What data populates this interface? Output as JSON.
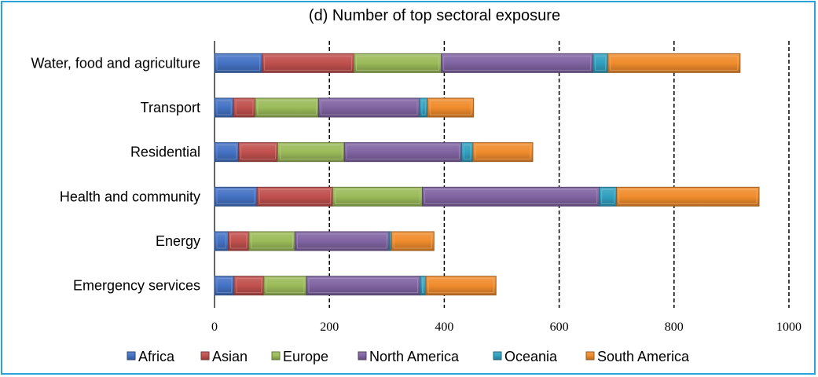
{
  "chart_data": {
    "type": "bar",
    "orientation": "horizontal",
    "stacked": true,
    "title": "(d) Number of top sectoral exposure",
    "categories": [
      "Water, food and agriculture",
      "Transport",
      "Residential",
      "Health and community",
      "Energy",
      "Emergency services"
    ],
    "series": [
      {
        "name": "Africa",
        "color": "#4472c4",
        "values": [
          83,
          33,
          42,
          74,
          24,
          34
        ]
      },
      {
        "name": "Asian",
        "color": "#c0504d",
        "values": [
          160,
          38,
          68,
          132,
          36,
          52
        ]
      },
      {
        "name": "Europe",
        "color": "#9bbb59",
        "values": [
          152,
          110,
          116,
          156,
          80,
          74
        ]
      },
      {
        "name": "North America",
        "color": "#8064a2",
        "values": [
          264,
          176,
          204,
          308,
          164,
          198
        ]
      },
      {
        "name": "Oceania",
        "color": "#31a0c0",
        "values": [
          26,
          14,
          20,
          30,
          4,
          10
        ]
      },
      {
        "name": "South America",
        "color": "#f08c2c",
        "values": [
          230,
          80,
          104,
          248,
          74,
          122
        ]
      }
    ],
    "xlim": [
      0,
      1000
    ],
    "xticks": [
      "0",
      "200",
      "400",
      "600",
      "800",
      "1000"
    ],
    "grid": "vertical dashed",
    "legend": "bottom"
  }
}
